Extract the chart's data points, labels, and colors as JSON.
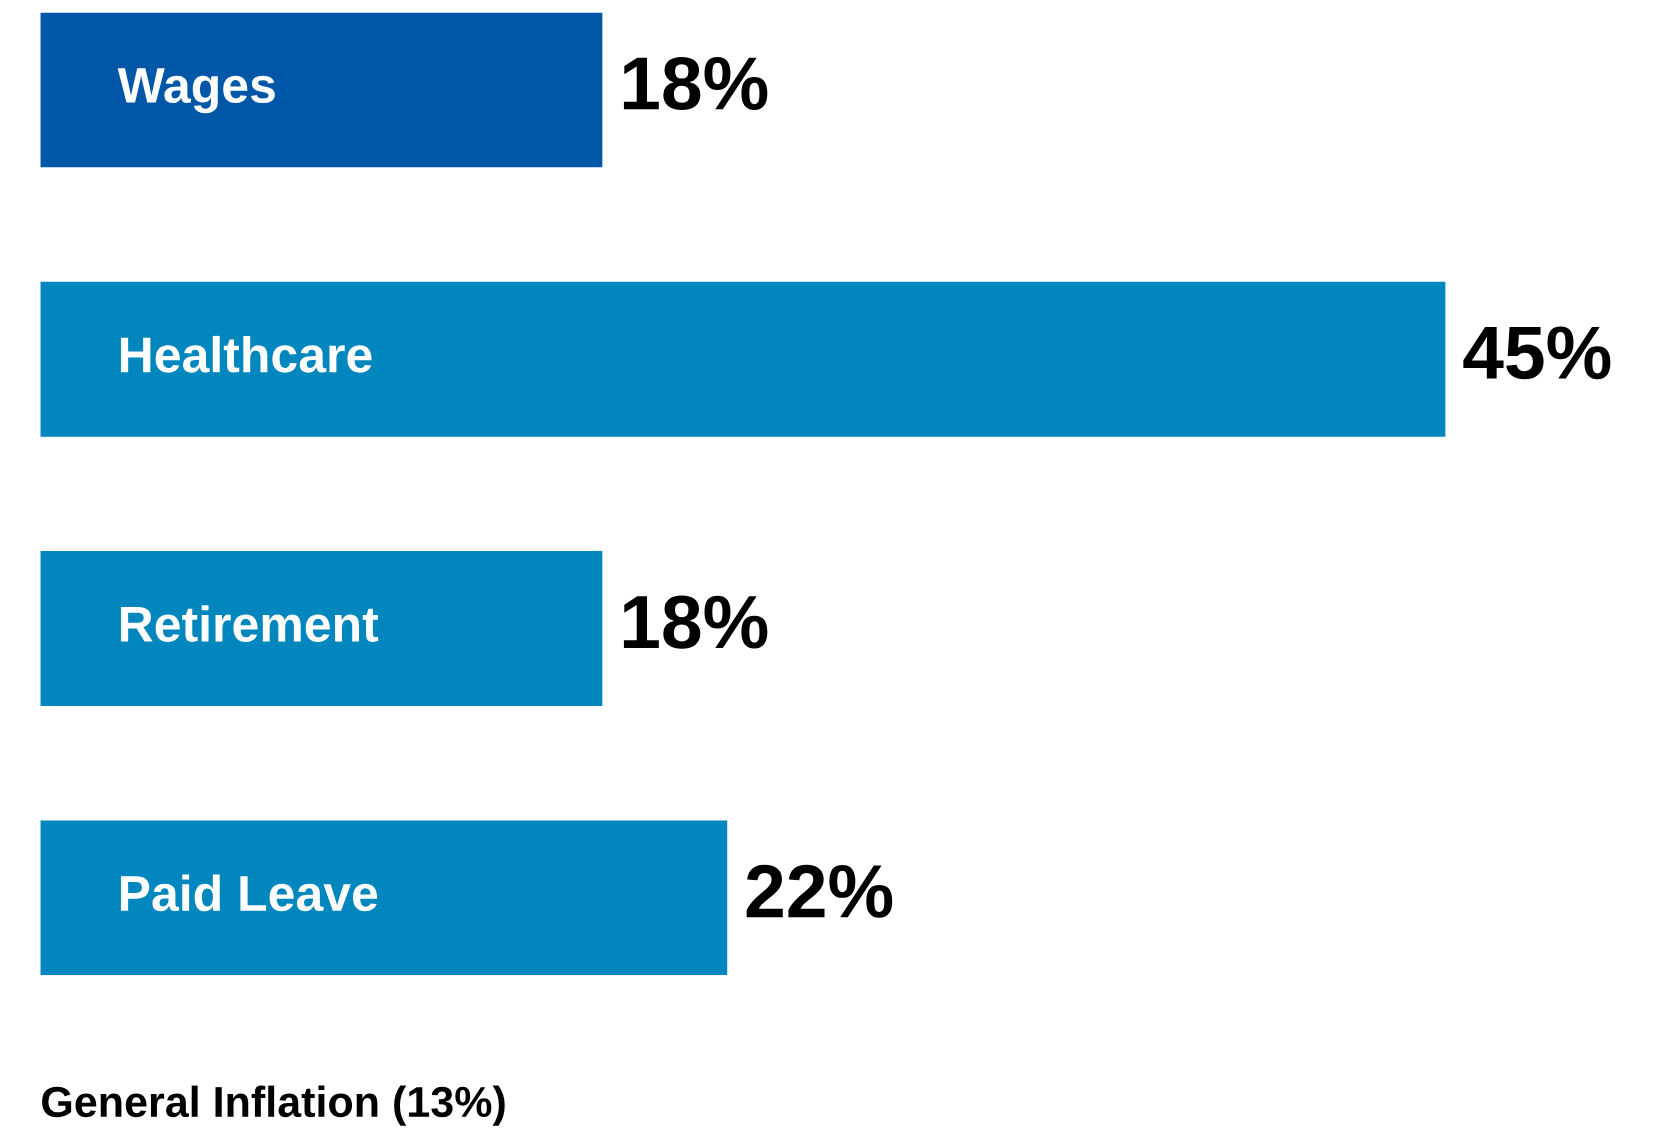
{
  "chart_data": {
    "type": "bar",
    "orientation": "horizontal",
    "categories": [
      "Wages",
      "Healthcare",
      "Retirement",
      "Paid Leave"
    ],
    "values": [
      18,
      45,
      18,
      22
    ],
    "colors": [
      "#0057a8",
      "#0286be",
      "#0286be",
      "#0286be"
    ],
    "value_labels": [
      "18%",
      "45%",
      "18%",
      "22%"
    ],
    "annotations": [
      "General Inflation (13%)"
    ]
  }
}
